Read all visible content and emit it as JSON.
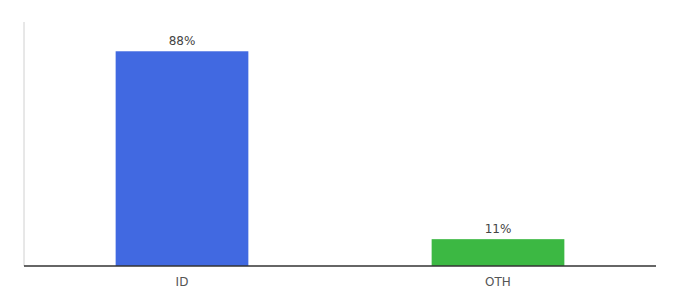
{
  "chart_data": {
    "type": "bar",
    "categories": [
      "ID",
      "OTH"
    ],
    "values": [
      88,
      11
    ],
    "colors": [
      "#4169e1",
      "#3cb843"
    ],
    "value_labels": [
      "88%",
      "11%"
    ],
    "data_labels": true,
    "ylim": [
      0,
      100
    ],
    "tick_labels": "x",
    "grid": false
  }
}
